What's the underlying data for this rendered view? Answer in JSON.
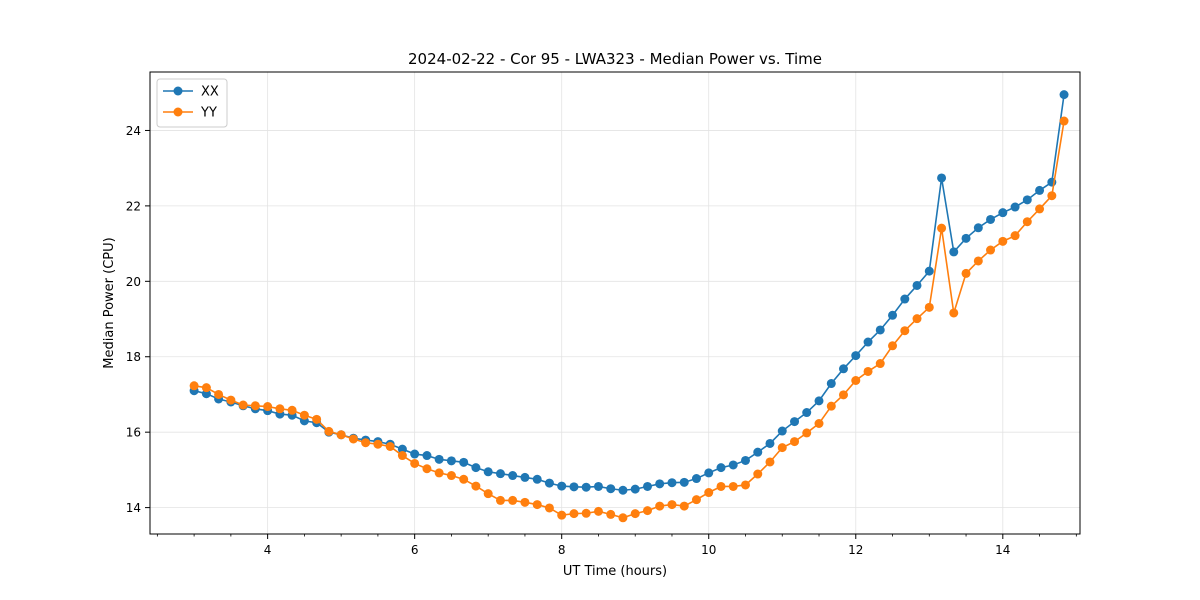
{
  "chart_data": {
    "type": "line",
    "title": "2024-02-22 - Cor 95 - LWA323 - Median Power vs. Time",
    "xlabel": "UT Time (hours)",
    "ylabel": "Median Power (CPU)",
    "xlim": [
      2.4,
      15.05
    ],
    "ylim": [
      13.3,
      25.55
    ],
    "xticks": [
      4,
      6,
      8,
      10,
      12,
      14
    ],
    "yticks": [
      14,
      16,
      18,
      20,
      22,
      24
    ],
    "grid": true,
    "legend_position": "top-left",
    "x": [
      3.0,
      3.167,
      3.333,
      3.5,
      3.667,
      3.833,
      4.0,
      4.167,
      4.333,
      4.5,
      4.667,
      4.833,
      5.0,
      5.167,
      5.333,
      5.5,
      5.667,
      5.833,
      6.0,
      6.167,
      6.333,
      6.5,
      6.667,
      6.833,
      7.0,
      7.167,
      7.333,
      7.5,
      7.667,
      7.833,
      8.0,
      8.167,
      8.333,
      8.5,
      8.667,
      8.833,
      9.0,
      9.167,
      9.333,
      9.5,
      9.667,
      9.833,
      10.0,
      10.167,
      10.333,
      10.5,
      10.667,
      10.833,
      11.0,
      11.167,
      11.333,
      11.5,
      11.667,
      11.833,
      12.0,
      12.167,
      12.333,
      12.5,
      12.667,
      12.833,
      13.0,
      13.167,
      13.333,
      13.5,
      13.667,
      13.833,
      14.0,
      14.167,
      14.333,
      14.5,
      14.667,
      14.833
    ],
    "series": [
      {
        "name": "XX",
        "color": "#1f77b4",
        "values": [
          17.1,
          17.02,
          16.88,
          16.8,
          16.7,
          16.62,
          16.57,
          16.48,
          16.45,
          16.3,
          16.25,
          16.0,
          15.93,
          15.84,
          15.79,
          15.75,
          15.68,
          15.55,
          15.42,
          15.38,
          15.28,
          15.24,
          15.2,
          15.06,
          14.95,
          14.9,
          14.85,
          14.8,
          14.75,
          14.65,
          14.57,
          14.55,
          14.54,
          14.56,
          14.5,
          14.46,
          14.49,
          14.56,
          14.63,
          14.66,
          14.67,
          14.77,
          14.92,
          15.06,
          15.13,
          15.25,
          15.47,
          15.7,
          16.03,
          16.28,
          16.52,
          16.83,
          17.29,
          17.68,
          18.03,
          18.39,
          18.71,
          19.1,
          19.53,
          19.89,
          20.27,
          22.74,
          20.78,
          21.14,
          21.42,
          21.64,
          21.82,
          21.97,
          22.16,
          22.41,
          22.63,
          24.95
        ]
      },
      {
        "name": "YY",
        "color": "#ff7f0e",
        "values": [
          17.23,
          17.18,
          17.0,
          16.85,
          16.72,
          16.7,
          16.68,
          16.62,
          16.58,
          16.45,
          16.34,
          16.02,
          15.93,
          15.82,
          15.72,
          15.68,
          15.62,
          15.38,
          15.17,
          15.03,
          14.92,
          14.85,
          14.75,
          14.57,
          14.37,
          14.19,
          14.19,
          14.14,
          14.08,
          13.99,
          13.8,
          13.84,
          13.85,
          13.9,
          13.82,
          13.73,
          13.84,
          13.92,
          14.04,
          14.08,
          14.04,
          14.21,
          14.4,
          14.56,
          14.56,
          14.6,
          14.89,
          15.21,
          15.59,
          15.75,
          15.98,
          16.23,
          16.69,
          16.99,
          17.37,
          17.61,
          17.82,
          18.29,
          18.69,
          19.01,
          19.31,
          21.41,
          19.16,
          20.21,
          20.54,
          20.83,
          21.06,
          21.21,
          21.58,
          21.92,
          22.27,
          24.25
        ]
      }
    ]
  }
}
